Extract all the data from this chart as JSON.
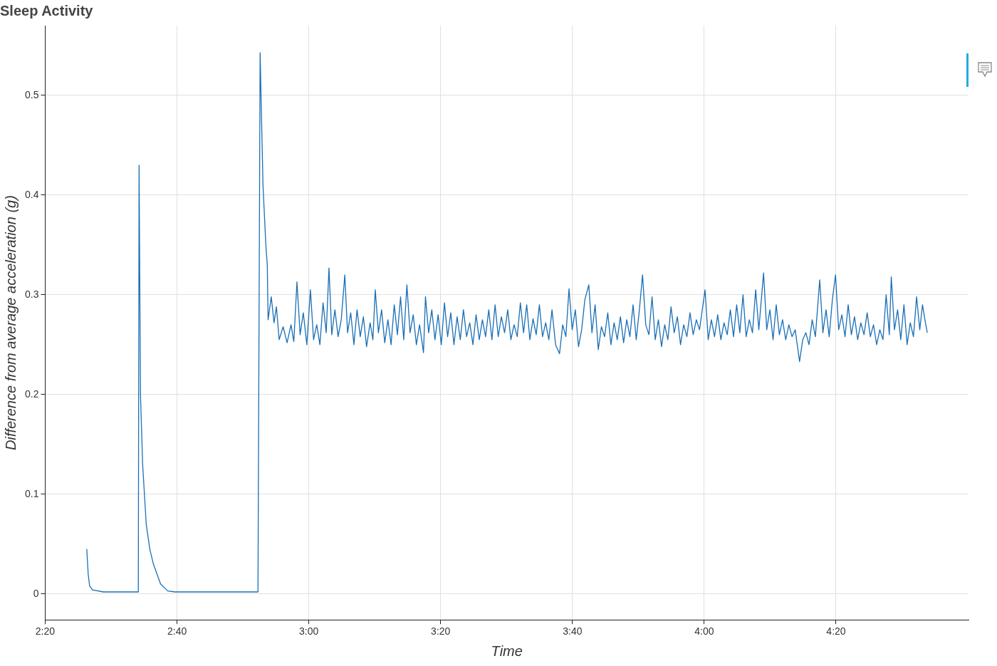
{
  "chart_data": {
    "type": "line",
    "title": "Sleep Activity",
    "xlabel": "Time",
    "ylabel": "Difference from average acceleration (g)",
    "xlim": [
      2.3333,
      4.6683
    ],
    "ylim": [
      -0.026,
      0.57
    ],
    "xticks": [
      {
        "value": 2.3333,
        "label": "2:20"
      },
      {
        "value": 2.6667,
        "label": "2:40"
      },
      {
        "value": 3,
        "label": "3:00"
      },
      {
        "value": 3.3333,
        "label": "3:20"
      },
      {
        "value": 3.6667,
        "label": "3:40"
      },
      {
        "value": 4,
        "label": "4:00"
      },
      {
        "value": 4.3333,
        "label": "4:20"
      }
    ],
    "yticks": [
      0,
      0.1,
      0.2,
      0.3,
      0.4,
      0.5
    ],
    "grid": true,
    "legend": false,
    "marker": "none",
    "line_style": "solid",
    "series": [
      {
        "color": "#1a6fb5",
        "x": [
          2.4384,
          2.442,
          2.4457,
          2.4529,
          2.4801,
          2.4982,
          2.5688,
          2.5707,
          2.5743,
          2.5797,
          2.5888,
          2.5978,
          2.6069,
          2.625,
          2.6431,
          2.6612,
          2.7518,
          2.8714,
          2.8768,
          2.8841,
          2.8913,
          2.8949,
          2.897,
          2.905,
          2.912,
          2.918,
          2.925,
          2.935,
          2.945,
          2.955,
          2.962,
          2.97,
          2.978,
          2.986,
          2.995,
          3.004,
          3.012,
          3.02,
          3.028,
          3.036,
          3.044,
          3.051,
          3.058,
          3.066,
          3.074,
          3.082,
          3.091,
          3.098,
          3.106,
          3.114,
          3.122,
          3.13,
          3.138,
          3.146,
          3.155,
          3.162,
          3.168,
          3.176,
          3.184,
          3.192,
          3.2,
          3.208,
          3.216,
          3.224,
          3.232,
          3.24,
          3.248,
          3.256,
          3.264,
          3.272,
          3.28,
          3.29,
          3.295,
          3.303,
          3.311,
          3.319,
          3.327,
          3.335,
          3.343,
          3.351,
          3.359,
          3.367,
          3.375,
          3.383,
          3.391,
          3.399,
          3.407,
          3.415,
          3.423,
          3.431,
          3.439,
          3.447,
          3.455,
          3.463,
          3.471,
          3.479,
          3.487,
          3.495,
          3.503,
          3.511,
          3.519,
          3.527,
          3.535,
          3.543,
          3.551,
          3.559,
          3.567,
          3.575,
          3.583,
          3.591,
          3.599,
          3.607,
          3.615,
          3.624,
          3.634,
          3.642,
          3.65,
          3.658,
          3.666,
          3.674,
          3.682,
          3.69,
          3.698,
          3.708,
          3.716,
          3.724,
          3.732,
          3.74,
          3.748,
          3.756,
          3.764,
          3.772,
          3.78,
          3.788,
          3.796,
          3.804,
          3.812,
          3.82,
          3.828,
          3.836,
          3.844,
          3.852,
          3.86,
          3.868,
          3.876,
          3.884,
          3.892,
          3.9,
          3.908,
          3.916,
          3.924,
          3.932,
          3.94,
          3.948,
          3.956,
          3.964,
          3.972,
          3.98,
          3.988,
          3.995,
          4.002,
          4.01,
          4.018,
          4.026,
          4.034,
          4.042,
          4.05,
          4.058,
          4.066,
          4.074,
          4.082,
          4.09,
          4.098,
          4.106,
          4.114,
          4.122,
          4.13,
          4.138,
          4.15,
          4.158,
          4.166,
          4.174,
          4.182,
          4.19,
          4.198,
          4.206,
          4.214,
          4.222,
          4.23,
          4.241,
          4.249,
          4.257,
          4.265,
          4.273,
          4.281,
          4.292,
          4.3,
          4.308,
          4.316,
          4.324,
          4.332,
          4.34,
          4.348,
          4.356,
          4.364,
          4.372,
          4.38,
          4.388,
          4.396,
          4.404,
          4.412,
          4.42,
          4.428,
          4.436,
          4.444,
          4.452,
          4.46,
          4.468,
          4.473,
          4.481,
          4.489,
          4.497,
          4.505,
          4.513,
          4.521,
          4.529,
          4.537,
          4.545,
          4.552,
          4.558,
          4.564
        ],
        "values": [
          0.045,
          0.02,
          0.008,
          0.004,
          0.002,
          0.002,
          0.002,
          0.43,
          0.2,
          0.13,
          0.07,
          0.045,
          0.03,
          0.01,
          0.003,
          0.002,
          0.002,
          0.002,
          0.543,
          0.41,
          0.35,
          0.33,
          0.275,
          0.298,
          0.272,
          0.288,
          0.255,
          0.268,
          0.252,
          0.27,
          0.253,
          0.313,
          0.26,
          0.282,
          0.25,
          0.305,
          0.255,
          0.27,
          0.25,
          0.292,
          0.262,
          0.327,
          0.26,
          0.285,
          0.258,
          0.275,
          0.32,
          0.262,
          0.282,
          0.25,
          0.285,
          0.258,
          0.278,
          0.248,
          0.272,
          0.255,
          0.305,
          0.262,
          0.285,
          0.252,
          0.275,
          0.25,
          0.29,
          0.26,
          0.298,
          0.255,
          0.31,
          0.262,
          0.28,
          0.25,
          0.27,
          0.242,
          0.298,
          0.262,
          0.285,
          0.255,
          0.28,
          0.25,
          0.292,
          0.258,
          0.282,
          0.25,
          0.278,
          0.255,
          0.285,
          0.258,
          0.272,
          0.25,
          0.28,
          0.255,
          0.275,
          0.258,
          0.285,
          0.255,
          0.29,
          0.258,
          0.278,
          0.262,
          0.285,
          0.255,
          0.27,
          0.258,
          0.292,
          0.262,
          0.29,
          0.255,
          0.276,
          0.26,
          0.29,
          0.258,
          0.272,
          0.255,
          0.285,
          0.25,
          0.241,
          0.27,
          0.258,
          0.306,
          0.265,
          0.285,
          0.248,
          0.265,
          0.295,
          0.31,
          0.262,
          0.29,
          0.245,
          0.268,
          0.258,
          0.282,
          0.25,
          0.272,
          0.255,
          0.278,
          0.252,
          0.275,
          0.258,
          0.29,
          0.255,
          0.285,
          0.32,
          0.27,
          0.26,
          0.298,
          0.255,
          0.275,
          0.248,
          0.27,
          0.255,
          0.288,
          0.262,
          0.278,
          0.25,
          0.27,
          0.258,
          0.282,
          0.26,
          0.275,
          0.265,
          0.285,
          0.305,
          0.255,
          0.275,
          0.258,
          0.28,
          0.255,
          0.272,
          0.26,
          0.285,
          0.258,
          0.29,
          0.262,
          0.3,
          0.258,
          0.275,
          0.262,
          0.305,
          0.265,
          0.322,
          0.265,
          0.285,
          0.255,
          0.29,
          0.26,
          0.275,
          0.255,
          0.27,
          0.258,
          0.265,
          0.233,
          0.255,
          0.262,
          0.25,
          0.275,
          0.258,
          0.315,
          0.262,
          0.285,
          0.258,
          0.295,
          0.32,
          0.265,
          0.28,
          0.258,
          0.29,
          0.26,
          0.278,
          0.255,
          0.272,
          0.26,
          0.282,
          0.258,
          0.27,
          0.25,
          0.265,
          0.255,
          0.3,
          0.26,
          0.318,
          0.265,
          0.285,
          0.255,
          0.29,
          0.25,
          0.272,
          0.258,
          0.298,
          0.265,
          0.29,
          0.275,
          0.262
        ]
      }
    ]
  }
}
